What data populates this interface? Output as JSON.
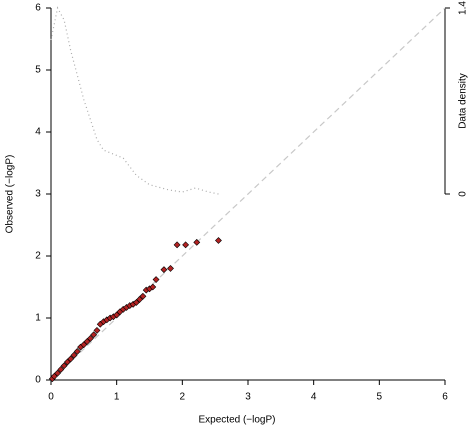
{
  "chart_data": {
    "type": "scatter",
    "xlabel": "Expected (−logP)",
    "ylabel": "Observed (−logP)",
    "y2label": "Data density",
    "xlim": [
      0,
      6
    ],
    "ylim": [
      0,
      6
    ],
    "xticks": [
      0,
      1,
      2,
      3,
      4,
      5,
      6
    ],
    "yticks": [
      0,
      1,
      2,
      3,
      4,
      5,
      6
    ],
    "y2lim": [
      0,
      1.4
    ],
    "y2ticks": [
      0,
      1.4
    ],
    "reference_line_color": "#c8c8c8",
    "series": [
      {
        "type": "scatter",
        "color": "#b22222",
        "x": [
          0.02,
          0.05,
          0.1,
          0.15,
          0.2,
          0.25,
          0.3,
          0.35,
          0.4,
          0.45,
          0.5,
          0.55,
          0.6,
          0.65,
          0.7,
          0.75,
          0.8,
          0.85,
          0.9,
          0.95,
          1.0,
          1.05,
          1.1,
          1.15,
          1.2,
          1.25,
          1.3,
          1.35,
          1.4,
          1.45,
          1.5,
          1.55,
          1.6,
          1.72,
          1.82,
          1.92,
          2.05,
          2.22,
          2.55
        ],
        "values": [
          0.02,
          0.06,
          0.11,
          0.17,
          0.23,
          0.29,
          0.34,
          0.4,
          0.46,
          0.53,
          0.57,
          0.62,
          0.67,
          0.73,
          0.8,
          0.9,
          0.94,
          0.97,
          1.0,
          1.02,
          1.05,
          1.1,
          1.14,
          1.17,
          1.2,
          1.22,
          1.25,
          1.3,
          1.35,
          1.45,
          1.47,
          1.5,
          1.62,
          1.78,
          1.8,
          2.18,
          2.18,
          2.22,
          2.25
        ]
      },
      {
        "type": "line",
        "axis": "y2",
        "color": "#aaaaaa",
        "x": [
          0,
          0.1,
          0.2,
          0.3,
          0.5,
          0.7,
          0.8,
          1.0,
          1.1,
          1.3,
          1.5,
          1.8,
          2.0,
          2.2,
          2.4,
          2.55
        ],
        "values": [
          1.16,
          1.4,
          1.31,
          1.08,
          0.71,
          0.41,
          0.33,
          0.29,
          0.27,
          0.14,
          0.07,
          0.03,
          0.015,
          0.045,
          0.015,
          0
        ]
      }
    ]
  }
}
